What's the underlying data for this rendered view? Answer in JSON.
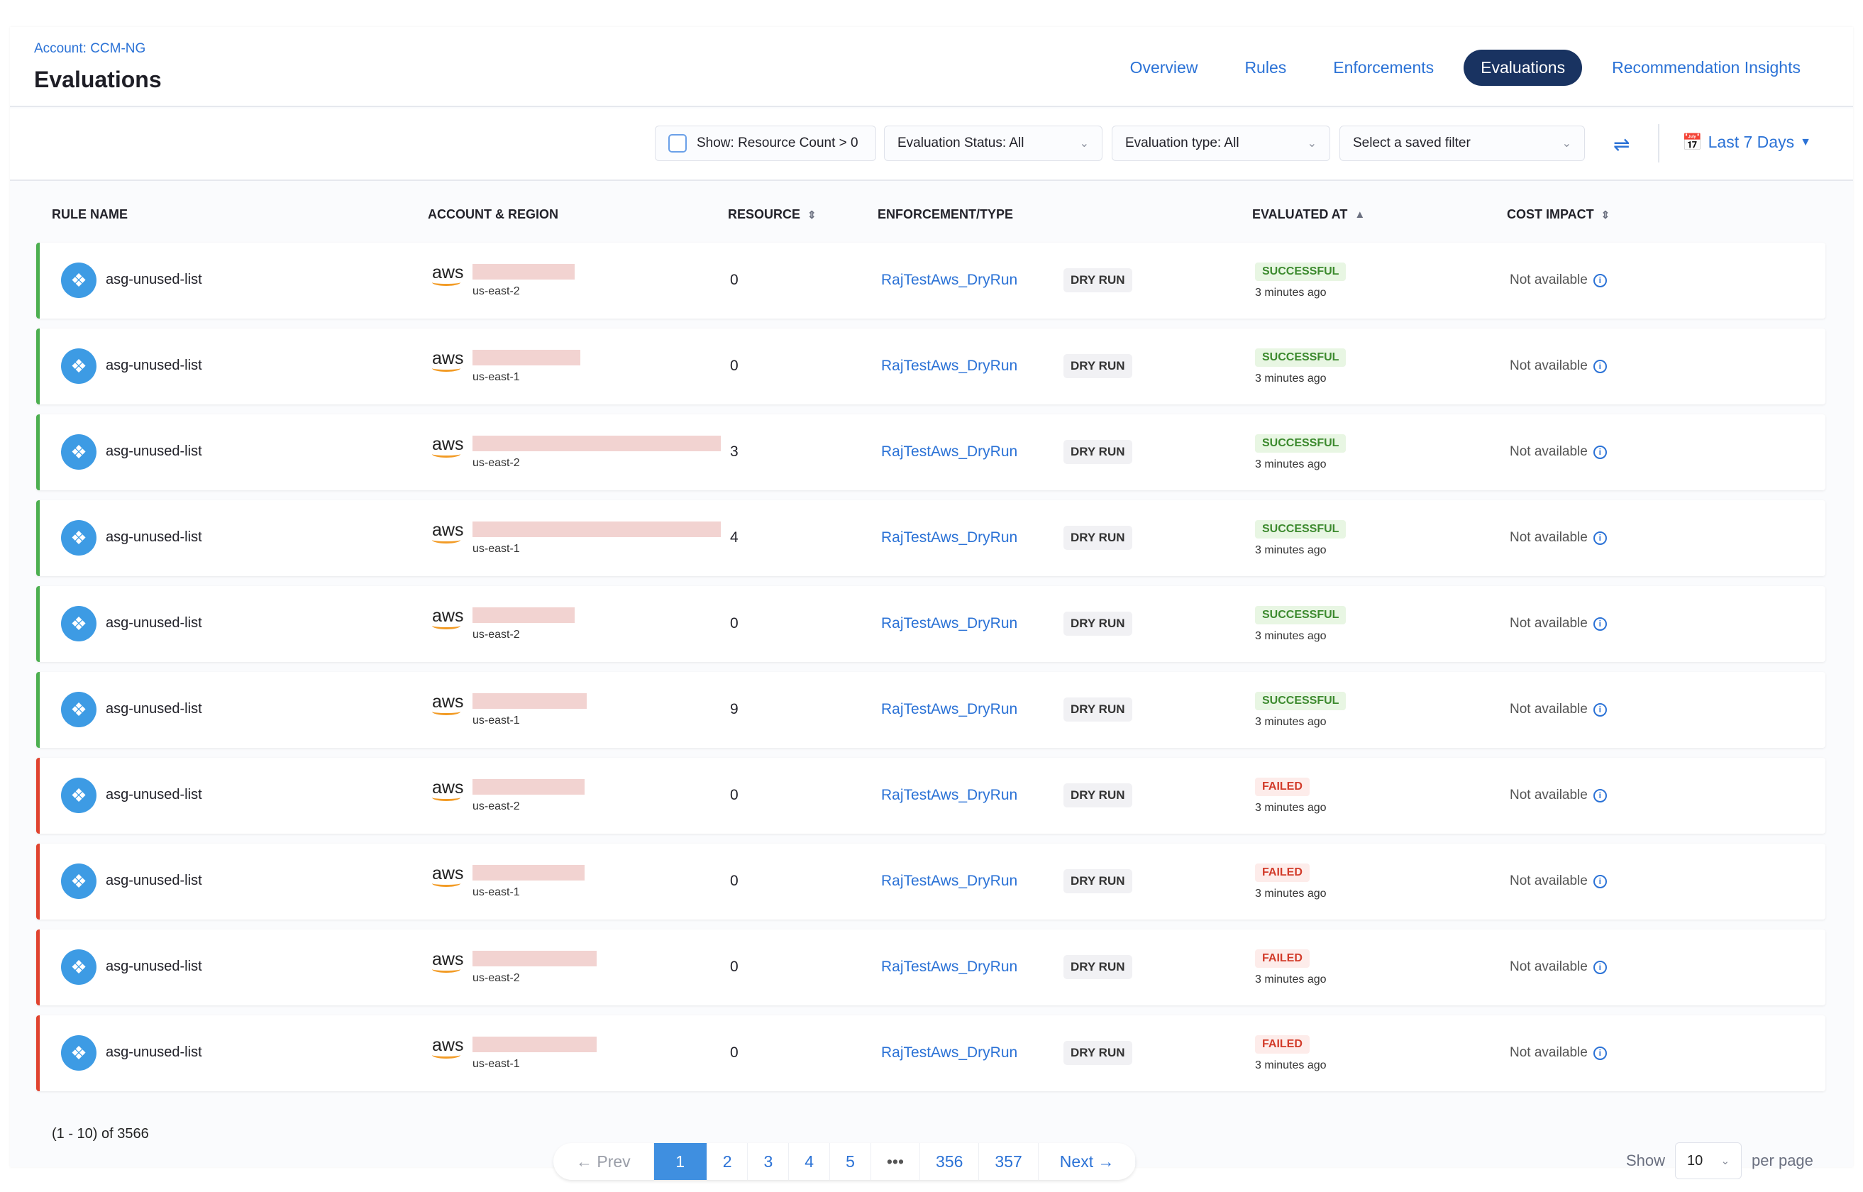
{
  "header": {
    "account": "Account: CCM-NG",
    "title": "Evaluations",
    "tabs": [
      {
        "label": "Overview"
      },
      {
        "label": "Rules"
      },
      {
        "label": "Enforcements"
      },
      {
        "label": "Evaluations",
        "active": true
      },
      {
        "label": "Recommendation Insights"
      }
    ]
  },
  "filters": {
    "resource_count": "Show: Resource Count > 0",
    "status": "Evaluation Status: All",
    "type": "Evaluation type: All",
    "saved": "Select a saved filter",
    "date": "Last 7 Days"
  },
  "columns": [
    "RULE NAME",
    "ACCOUNT & REGION",
    "RESOURCE",
    "ENFORCEMENT/TYPE",
    "EVALUATED AT",
    "COST IMPACT"
  ],
  "rows": [
    {
      "name": "asg-unused-list",
      "region": "us-east-2",
      "resource": "0",
      "enforcement": "RajTestAws_DryRun",
      "type": "DRY RUN",
      "status": "SUCCESSFUL",
      "time": "3 minutes ago",
      "cost": "Not available"
    },
    {
      "name": "asg-unused-list",
      "region": "us-east-1",
      "resource": "0",
      "enforcement": "RajTestAws_DryRun",
      "type": "DRY RUN",
      "status": "SUCCESSFUL",
      "time": "3 minutes ago",
      "cost": "Not available"
    },
    {
      "name": "asg-unused-list",
      "region": "us-east-2",
      "resource": "3",
      "enforcement": "RajTestAws_DryRun",
      "type": "DRY RUN",
      "status": "SUCCESSFUL",
      "time": "3 minutes ago",
      "cost": "Not available"
    },
    {
      "name": "asg-unused-list",
      "region": "us-east-1",
      "resource": "4",
      "enforcement": "RajTestAws_DryRun",
      "type": "DRY RUN",
      "status": "SUCCESSFUL",
      "time": "3 minutes ago",
      "cost": "Not available"
    },
    {
      "name": "asg-unused-list",
      "region": "us-east-2",
      "resource": "0",
      "enforcement": "RajTestAws_DryRun",
      "type": "DRY RUN",
      "status": "SUCCESSFUL",
      "time": "3 minutes ago",
      "cost": "Not available"
    },
    {
      "name": "asg-unused-list",
      "region": "us-east-1",
      "resource": "9",
      "enforcement": "RajTestAws_DryRun",
      "type": "DRY RUN",
      "status": "SUCCESSFUL",
      "time": "3 minutes ago",
      "cost": "Not available"
    },
    {
      "name": "asg-unused-list",
      "region": "us-east-2",
      "resource": "0",
      "enforcement": "RajTestAws_DryRun",
      "type": "DRY RUN",
      "status": "FAILED",
      "time": "3 minutes ago",
      "cost": "Not available"
    },
    {
      "name": "asg-unused-list",
      "region": "us-east-1",
      "resource": "0",
      "enforcement": "RajTestAws_DryRun",
      "type": "DRY RUN",
      "status": "FAILED",
      "time": "3 minutes ago",
      "cost": "Not available"
    },
    {
      "name": "asg-unused-list",
      "region": "us-east-2",
      "resource": "0",
      "enforcement": "RajTestAws_DryRun",
      "type": "DRY RUN",
      "status": "FAILED",
      "time": "3 minutes ago",
      "cost": "Not available"
    },
    {
      "name": "asg-unused-list",
      "region": "us-east-1",
      "resource": "0",
      "enforcement": "RajTestAws_DryRun",
      "type": "DRY RUN",
      "status": "FAILED",
      "time": "3 minutes ago",
      "cost": "Not available"
    }
  ],
  "pagination": {
    "summary": "(1 - 10) of 3566",
    "prev": "← Prev",
    "pages": [
      "1",
      "2",
      "3",
      "4",
      "5",
      "•••",
      "356",
      "357"
    ],
    "next": "Next →",
    "show": "Show",
    "per_page_value": "10",
    "per_page": "per page"
  },
  "colors": {
    "accent": "#2b72d6",
    "active_tab": "#193361",
    "success": "#4caf50",
    "failed": "#e0432f"
  }
}
